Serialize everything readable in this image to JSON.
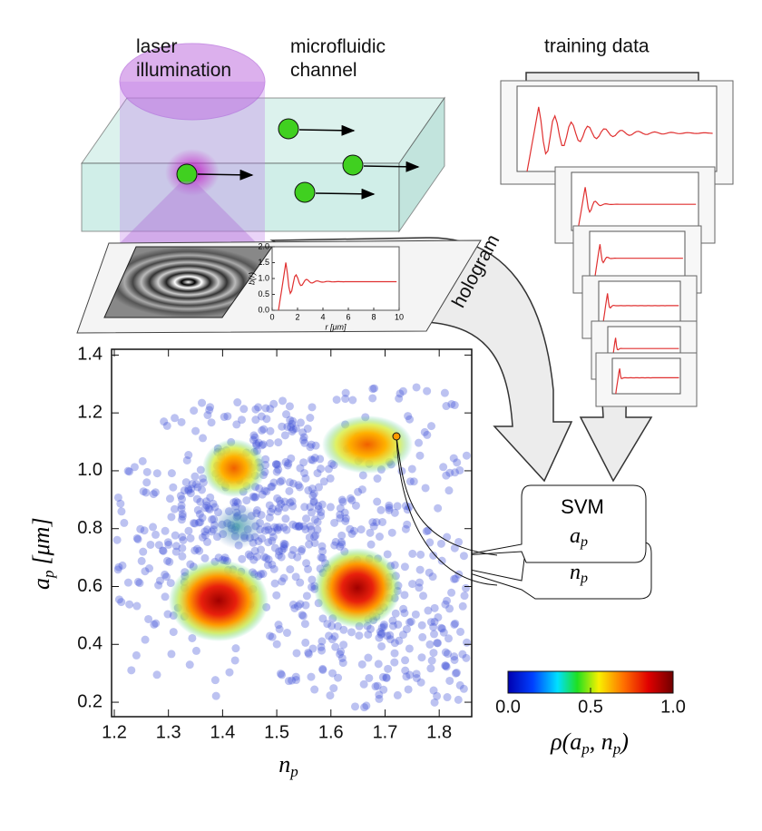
{
  "labels": {
    "laser": "laser\nillumination",
    "channel": "microfluidic\nchannel",
    "training": "training data",
    "hologram": "hologram",
    "svm": "SVM",
    "svm_a": "a",
    "svm_a_sub": "p",
    "svm_n": "n",
    "svm_n_sub": "p"
  },
  "inset": {
    "ylabel": "b(r)",
    "xlabel": "r [μm]",
    "xlim": [
      0,
      10
    ],
    "ylim": [
      0,
      2
    ],
    "xticks": [
      0,
      2,
      4,
      6,
      8,
      10
    ],
    "yticks": [
      {
        "value": 0,
        "label": "0.0"
      },
      0.5,
      {
        "value": 1,
        "label": "1.0"
      },
      1.5,
      {
        "value": 2,
        "label": "2.0"
      }
    ]
  },
  "chart_data": {
    "type": "scatter",
    "xlabel": "n",
    "xlabel_sub": "p",
    "ylabel": "a",
    "ylabel_sub": "p",
    "ylabel_unit": "[μm]",
    "xlim": [
      1.195,
      1.86
    ],
    "ylim": [
      0.15,
      1.42
    ],
    "xticks": [
      1.2,
      1.3,
      1.4,
      1.5,
      1.6,
      1.7,
      1.8
    ],
    "yticks": [
      0.2,
      0.4,
      0.6,
      0.8,
      {
        "value": 1,
        "label": "1.0"
      },
      1.2,
      1.4
    ],
    "colorbar": {
      "label": "ρ(a",
      "label_sub": "p",
      "label_mid": ", n",
      "label_sub2": "p",
      "label_end": ")",
      "lim": [
        0,
        1
      ],
      "ticks": [
        {
          "value": 0,
          "label": "0.0"
        },
        0.5,
        {
          "value": 1,
          "label": "1.0"
        }
      ]
    }
  }
}
